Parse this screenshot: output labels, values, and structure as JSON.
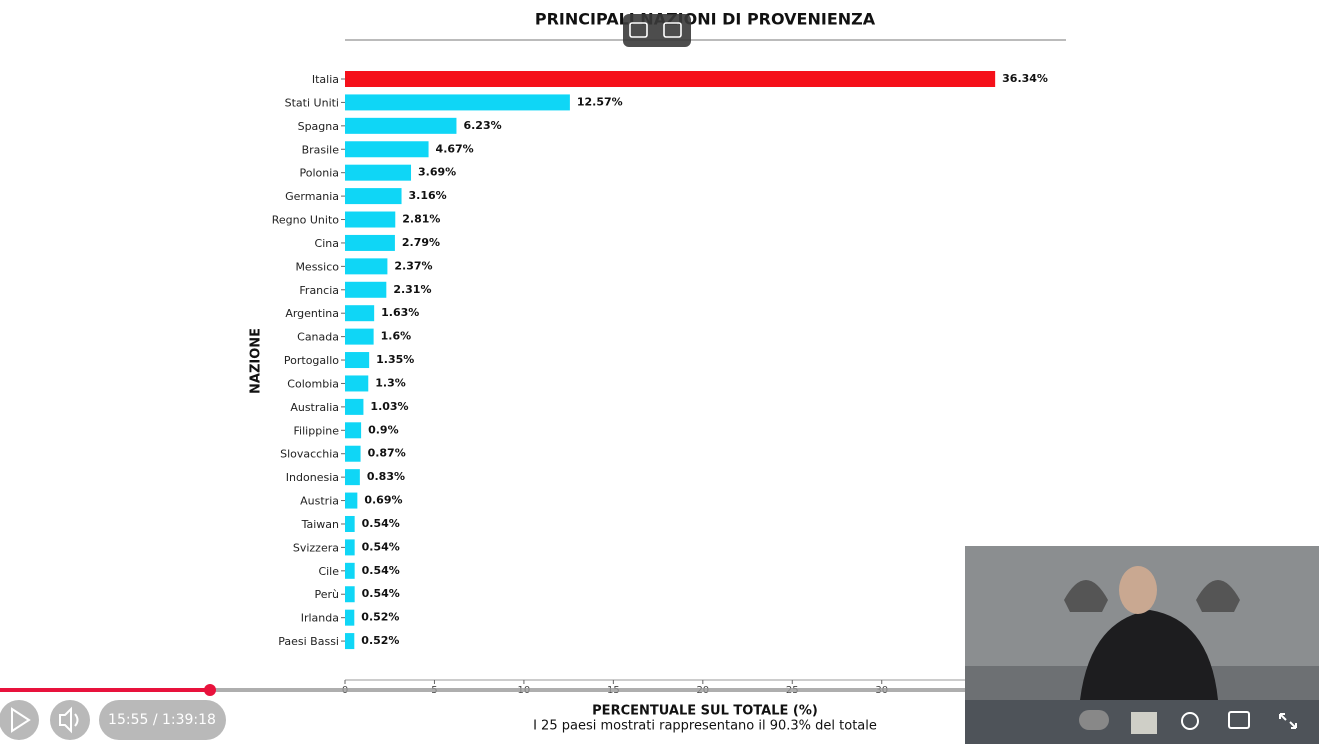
{
  "chart_data": {
    "type": "barh",
    "title": "PRINCIPALI NAZIONI DI PROVENIENZA",
    "ylabel": "NAZIONE",
    "xlabel": "PERCENTUALE SUL TOTALE (%)",
    "subtitle": "I 25 paesi mostrati rappresentano il 90.3% del totale",
    "categories": [
      "Italia",
      "Stati Uniti",
      "Spagna",
      "Brasile",
      "Polonia",
      "Germania",
      "Regno Unito",
      "Cina",
      "Messico",
      "Francia",
      "Argentina",
      "Canada",
      "Portogallo",
      "Colombia",
      "Australia",
      "Filippine",
      "Slovacchia",
      "Indonesia",
      "Austria",
      "Taiwan",
      "Svizzera",
      "Cile",
      "Perù",
      "Irlanda",
      "Paesi Bassi"
    ],
    "values": [
      36.34,
      12.57,
      6.23,
      4.67,
      3.69,
      3.16,
      2.81,
      2.79,
      2.37,
      2.31,
      1.63,
      1.6,
      1.35,
      1.3,
      1.03,
      0.9,
      0.87,
      0.83,
      0.69,
      0.54,
      0.54,
      0.54,
      0.54,
      0.52,
      0.52
    ],
    "value_labels": [
      "36.34%",
      "12.57%",
      "6.23%",
      "4.67%",
      "3.69%",
      "3.16%",
      "2.81%",
      "2.79%",
      "2.37%",
      "2.31%",
      "1.63%",
      "1.6%",
      "1.35%",
      "1.3%",
      "1.03%",
      "0.9%",
      "0.87%",
      "0.83%",
      "0.69%",
      "0.54%",
      "0.54%",
      "0.54%",
      "0.54%",
      "0.52%",
      "0.52%"
    ],
    "colors": [
      "#f5101a",
      "#0fd6f6",
      "#0fd6f6",
      "#0fd6f6",
      "#0fd6f6",
      "#0fd6f6",
      "#0fd6f6",
      "#0fd6f6",
      "#0fd6f6",
      "#0fd6f6",
      "#0fd6f6",
      "#0fd6f6",
      "#0fd6f6",
      "#0fd6f6",
      "#0fd6f6",
      "#0fd6f6",
      "#0fd6f6",
      "#0fd6f6",
      "#0fd6f6",
      "#0fd6f6",
      "#0fd6f6",
      "#0fd6f6",
      "#0fd6f6",
      "#0fd6f6",
      "#0fd6f6"
    ],
    "xlim": [
      0,
      40.3
    ],
    "xticks": [
      0,
      5,
      10,
      15,
      20,
      25,
      30
    ]
  },
  "player": {
    "time": "15:55 / 1:39:18"
  }
}
